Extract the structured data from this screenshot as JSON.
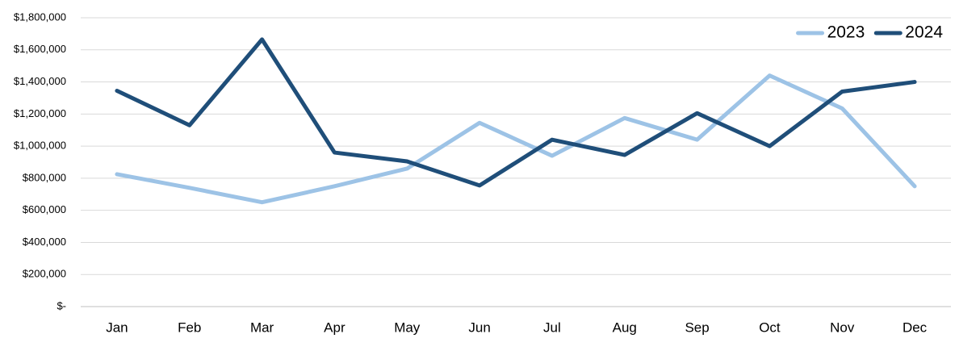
{
  "chart_data": {
    "type": "line",
    "categories": [
      "Jan",
      "Feb",
      "Mar",
      "Apr",
      "May",
      "Jun",
      "Jul",
      "Aug",
      "Sep",
      "Oct",
      "Nov",
      "Dec"
    ],
    "series": [
      {
        "name": "2023",
        "color": "#9dc3e6",
        "values": [
          825000,
          740000,
          650000,
          750000,
          860000,
          1145000,
          940000,
          1175000,
          1040000,
          1440000,
          1235000,
          750000
        ]
      },
      {
        "name": "2024",
        "color": "#1f4e79",
        "values": [
          1345000,
          1130000,
          1665000,
          960000,
          905000,
          755000,
          1040000,
          945000,
          1205000,
          1000000,
          1340000,
          1400000
        ]
      }
    ],
    "ylim": [
      0,
      1800000
    ],
    "yticks": [
      {
        "value": 0,
        "label": "$-"
      },
      {
        "value": 200000,
        "label": "$200,000"
      },
      {
        "value": 400000,
        "label": "$400,000"
      },
      {
        "value": 600000,
        "label": "$600,000"
      },
      {
        "value": 800000,
        "label": "$800,000"
      },
      {
        "value": 1000000,
        "label": "$1,000,000"
      },
      {
        "value": 1200000,
        "label": "$1,200,000"
      },
      {
        "value": 1400000,
        "label": "$1,400,000"
      },
      {
        "value": 1600000,
        "label": "$1,600,000"
      },
      {
        "value": 1800000,
        "label": "$1,800,000"
      }
    ],
    "grid": true,
    "legend": "top-right"
  }
}
